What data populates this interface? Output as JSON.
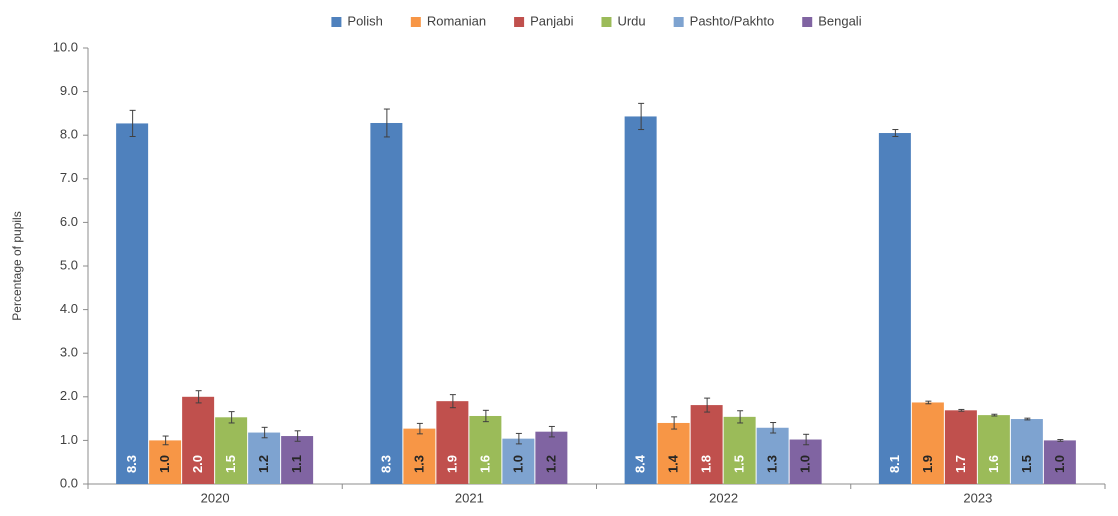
{
  "chart_data": {
    "type": "bar",
    "y_label": "Percentage of pupils",
    "categories": [
      "2020",
      "2021",
      "2022",
      "2023"
    ],
    "ylim": [
      0,
      10
    ],
    "yticks": [
      {
        "value": 0,
        "label": "0.0"
      },
      {
        "value": 1,
        "label": "1.0"
      },
      {
        "value": 2,
        "label": "2.0"
      },
      {
        "value": 3,
        "label": "3.0"
      },
      {
        "value": 4,
        "label": "4.0"
      },
      {
        "value": 5,
        "label": "5.0"
      },
      {
        "value": 6,
        "label": "6.0"
      },
      {
        "value": 7,
        "label": "7.0"
      },
      {
        "value": 8,
        "label": "8.0"
      },
      {
        "value": 9,
        "label": "9.0"
      },
      {
        "value": 10,
        "label": "10.0"
      }
    ],
    "legend": "top",
    "series": [
      {
        "name": "Polish",
        "color": "#4f81bd",
        "label_color": "#ffffff",
        "values": [
          8.27,
          8.28,
          8.43,
          8.05
        ],
        "errors": [
          0.3,
          0.32,
          0.3,
          0.08
        ],
        "value_labels": [
          "8.3",
          "8.3",
          "8.4",
          "8.1"
        ]
      },
      {
        "name": "Romanian",
        "color": "#f79646",
        "label_color": "#262626",
        "values": [
          1.0,
          1.27,
          1.4,
          1.87
        ],
        "errors": [
          0.1,
          0.12,
          0.14,
          0.03
        ],
        "value_labels": [
          "1.0",
          "1.3",
          "1.4",
          "1.9"
        ]
      },
      {
        "name": "Panjabi",
        "color": "#c0504d",
        "label_color": "#ffffff",
        "values": [
          2.0,
          1.9,
          1.81,
          1.69
        ],
        "errors": [
          0.14,
          0.15,
          0.16,
          0.02
        ],
        "value_labels": [
          "2.0",
          "1.9",
          "1.8",
          "1.7"
        ]
      },
      {
        "name": "Urdu",
        "color": "#9bbb59",
        "label_color": "#ffffff",
        "values": [
          1.53,
          1.56,
          1.54,
          1.58
        ],
        "errors": [
          0.13,
          0.13,
          0.14,
          0.02
        ],
        "value_labels": [
          "1.5",
          "1.6",
          "1.5",
          "1.6"
        ]
      },
      {
        "name": "Pashto/Pakhto",
        "color": "#7ea3d0",
        "label_color": "#262626",
        "values": [
          1.18,
          1.04,
          1.29,
          1.49
        ],
        "errors": [
          0.12,
          0.12,
          0.12,
          0.02
        ],
        "value_labels": [
          "1.2",
          "1.0",
          "1.3",
          "1.5"
        ]
      },
      {
        "name": "Bengali",
        "color": "#8064a2",
        "label_color": "#262626",
        "values": [
          1.1,
          1.2,
          1.02,
          1.0
        ],
        "errors": [
          0.12,
          0.12,
          0.12,
          0.02
        ],
        "value_labels": [
          "1.1",
          "1.2",
          "1.0",
          "1.0"
        ]
      }
    ]
  }
}
